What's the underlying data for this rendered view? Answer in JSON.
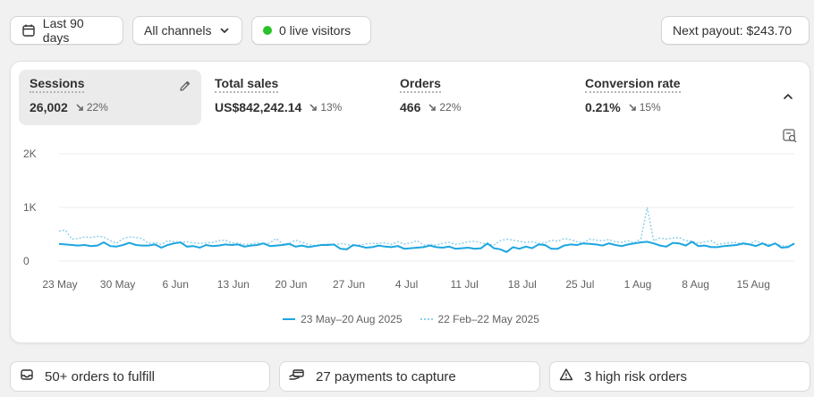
{
  "toolbar": {
    "date_range": "Last 90 days",
    "channels": "All channels",
    "live_visitors": "0 live visitors",
    "payout": "Next payout: $243.70"
  },
  "metrics": [
    {
      "label": "Sessions",
      "value": "26,002",
      "delta": "22%",
      "direction": "down",
      "active": true
    },
    {
      "label": "Total sales",
      "value": "US$842,242.14",
      "delta": "13%",
      "direction": "down",
      "active": false
    },
    {
      "label": "Orders",
      "value": "466",
      "delta": "22%",
      "direction": "down",
      "active": false
    },
    {
      "label": "Conversion rate",
      "value": "0.21%",
      "delta": "15%",
      "direction": "down",
      "active": false
    }
  ],
  "chart_data": {
    "type": "line",
    "y_ticks": [
      "2K",
      "1K",
      "0"
    ],
    "ylim": [
      0,
      2000
    ],
    "x_tick_labels": [
      "23 May",
      "30 May",
      "6 Jun",
      "13 Jun",
      "20 Jun",
      "27 Jun",
      "4 Jul",
      "11 Jul",
      "18 Jul",
      "25 Jul",
      "1 Aug",
      "8 Aug",
      "15 Aug"
    ],
    "grid": true,
    "legend_position": "bottom",
    "series": [
      {
        "name": "23 May–20 Aug 2025",
        "color": "#1ca6df",
        "style": "solid",
        "values": [
          320,
          310,
          300,
          290,
          300,
          280,
          290,
          350,
          280,
          270,
          300,
          340,
          300,
          290,
          290,
          310,
          250,
          300,
          330,
          350,
          270,
          280,
          250,
          300,
          280,
          290,
          310,
          300,
          310,
          270,
          290,
          300,
          330,
          280,
          290,
          300,
          320,
          270,
          290,
          260,
          280,
          300,
          300,
          310,
          230,
          220,
          300,
          280,
          250,
          260,
          290,
          270,
          260,
          280,
          230,
          240,
          250,
          260,
          290,
          260,
          250,
          270,
          230,
          240,
          250,
          230,
          240,
          330,
          240,
          220,
          170,
          260,
          230,
          270,
          240,
          310,
          300,
          230,
          230,
          290,
          310,
          300,
          330,
          320,
          310,
          290,
          330,
          300,
          280,
          310,
          330,
          350,
          360,
          330,
          290,
          270,
          340,
          330,
          290,
          360,
          280,
          290,
          260,
          260,
          280,
          290,
          300,
          330,
          310,
          280,
          330,
          280,
          330,
          250,
          260,
          330
        ]
      },
      {
        "name": "22 Feb–22 May 2025",
        "color": "#8fd0ea",
        "style": "dotted",
        "values": [
          560,
          580,
          410,
          420,
          450,
          440,
          460,
          450,
          380,
          330,
          420,
          450,
          440,
          420,
          330,
          340,
          310,
          380,
          360,
          340,
          360,
          340,
          330,
          340,
          350,
          380,
          390,
          340,
          330,
          310,
          320,
          340,
          320,
          340,
          420,
          320,
          330,
          390,
          350,
          310,
          290,
          300,
          320,
          290,
          330,
          310,
          280,
          300,
          320,
          330,
          330,
          340,
          310,
          360,
          320,
          340,
          380,
          300,
          310,
          300,
          330,
          350,
          310,
          330,
          360,
          370,
          340,
          310,
          300,
          380,
          410,
          390,
          370,
          350,
          360,
          330,
          340,
          390,
          370,
          420,
          400,
          360,
          340,
          410,
          390,
          380,
          400,
          360,
          350,
          380,
          340,
          420,
          1000,
          380,
          430,
          410,
          430,
          440,
          380,
          370,
          330,
          360,
          380,
          310,
          330,
          340,
          350,
          300,
          320,
          380,
          330,
          310,
          320,
          290,
          280,
          310
        ]
      }
    ]
  },
  "tasks": [
    {
      "label": "50+ orders to fulfill",
      "icon": "inbox-icon"
    },
    {
      "label": "27 payments to capture",
      "icon": "payment-icon"
    },
    {
      "label": "3 high risk orders",
      "icon": "alert-triangle-icon"
    }
  ]
}
